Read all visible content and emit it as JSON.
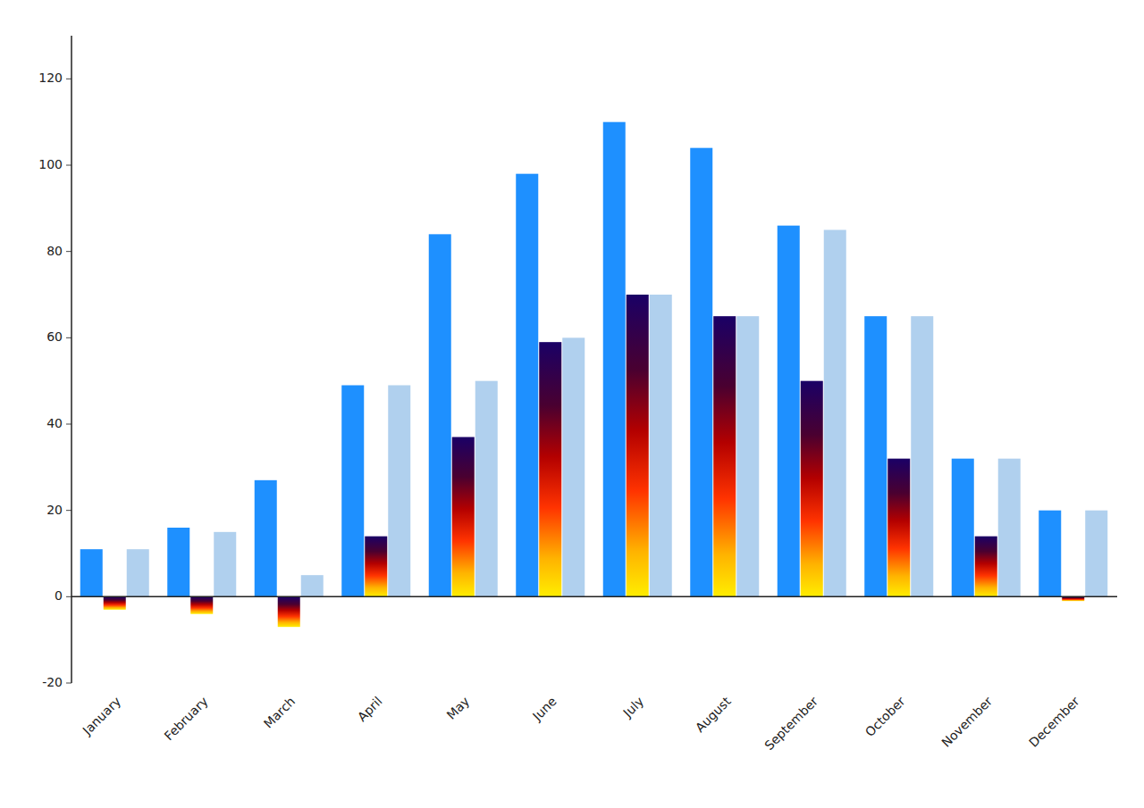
{
  "chart_data": {
    "type": "bar",
    "categories": [
      "January",
      "February",
      "March",
      "April",
      "May",
      "June",
      "July",
      "August",
      "September",
      "October",
      "November",
      "December"
    ],
    "series": [
      {
        "color": "#1e90ff",
        "values": [
          11,
          16,
          27,
          49,
          84,
          98,
          110,
          104,
          86,
          65,
          32,
          20
        ]
      },
      {
        "values": [
          -3,
          -4,
          -7,
          14,
          37,
          59,
          70,
          65,
          50,
          32,
          14,
          -1
        ]
      },
      {
        "color": "#b0d0ee",
        "values": [
          11,
          15,
          5,
          49,
          50,
          60,
          70,
          65,
          85,
          65,
          32,
          20
        ]
      }
    ],
    "ylim": [
      -20,
      130
    ],
    "yticks": [
      -20,
      0,
      20,
      40,
      60,
      80,
      100,
      120
    ],
    "grid": false
  }
}
